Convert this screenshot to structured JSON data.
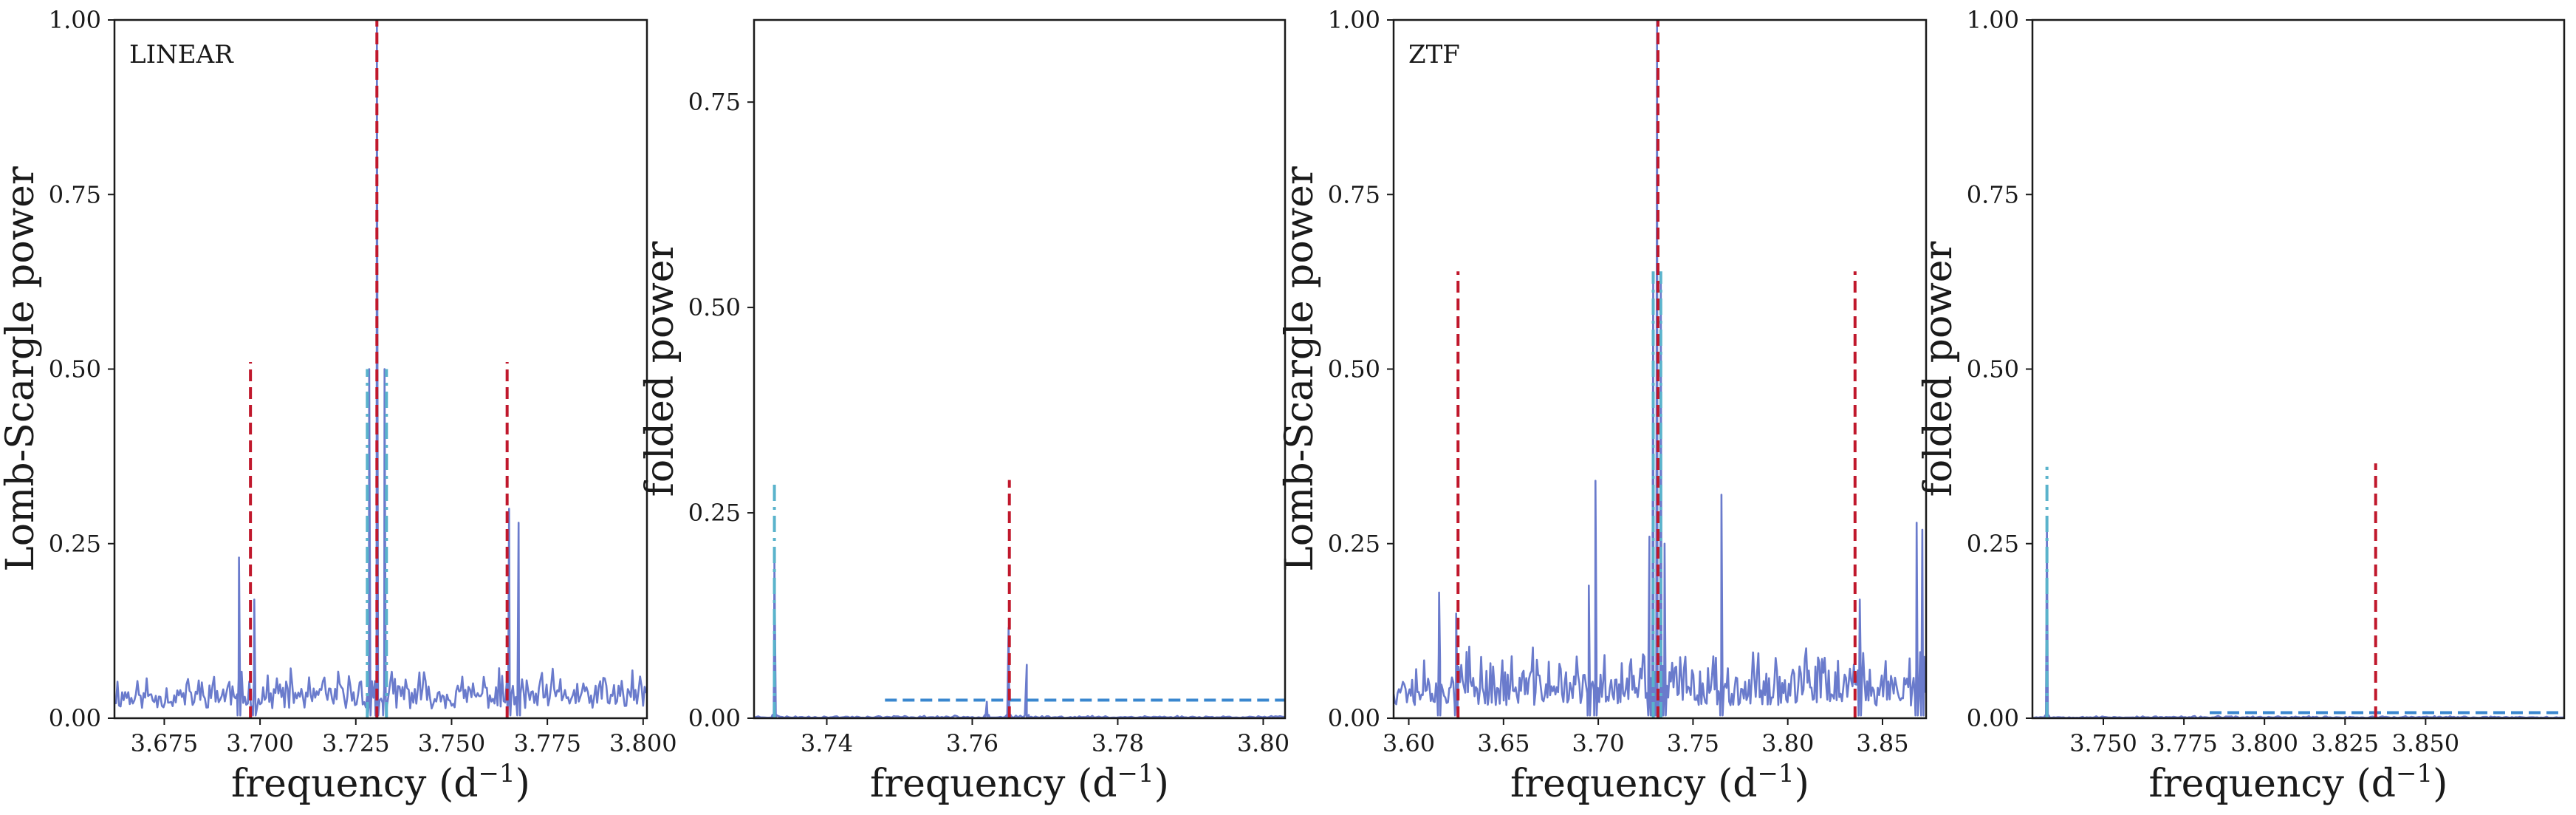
{
  "chart_data": [
    {
      "type": "line",
      "panel_label": "LINEAR",
      "xlabel": "frequency (d",
      "xlabel_sup": "−1",
      "xlabel_tail": ")",
      "ylabel": "Lomb-Scargle power",
      "xlim": [
        3.662,
        3.801
      ],
      "ylim": [
        0.0,
        1.0
      ],
      "xticks": [
        3.675,
        3.7,
        3.725,
        3.75,
        3.775,
        3.8
      ],
      "xtick_labels": [
        "3.675",
        "3.700",
        "3.725",
        "3.750",
        "3.775",
        "3.800"
      ],
      "yticks": [
        0.0,
        0.25,
        0.5,
        0.75,
        1.0
      ],
      "ytick_labels": [
        "0.00",
        "0.25",
        "0.50",
        "0.75",
        "1.00"
      ],
      "noise": {
        "seed": 11,
        "base": 0.035,
        "amp": 0.06,
        "step": 0.0004
      },
      "peaks": [
        {
          "x": 3.6945,
          "y": 0.23
        },
        {
          "x": 3.6985,
          "y": 0.17
        },
        {
          "x": 3.7285,
          "y": 0.5
        },
        {
          "x": 3.7305,
          "y": 1.0
        },
        {
          "x": 3.7325,
          "y": 0.5
        },
        {
          "x": 3.765,
          "y": 0.3
        },
        {
          "x": 3.7675,
          "y": 0.28
        }
      ],
      "red_lines": [
        {
          "x": 3.6975,
          "y0": 0.0,
          "y1": 0.51
        },
        {
          "x": 3.7305,
          "y0": 0.0,
          "y1": 1.0
        },
        {
          "x": 3.7645,
          "y0": 0.0,
          "y1": 0.51
        }
      ],
      "cyan_lines": [
        {
          "x": 3.728,
          "y0": 0.0,
          "y1": 0.5
        },
        {
          "x": 3.733,
          "y0": 0.0,
          "y1": 0.5
        }
      ],
      "blue_hlines": []
    },
    {
      "type": "line",
      "panel_label": "",
      "xlabel": "frequency (d",
      "xlabel_sup": "−1",
      "xlabel_tail": ")",
      "ylabel": "folded power",
      "xlim": [
        3.73,
        3.803
      ],
      "ylim": [
        0.0,
        0.85
      ],
      "xticks": [
        3.74,
        3.76,
        3.78,
        3.8
      ],
      "xtick_labels": [
        "3.74",
        "3.76",
        "3.78",
        "3.80"
      ],
      "yticks": [
        0.0,
        0.25,
        0.5,
        0.75
      ],
      "ytick_labels": [
        "0.00",
        "0.25",
        "0.50",
        "0.75"
      ],
      "noise": {
        "seed": 23,
        "base": 0.001,
        "amp": 0.003,
        "step": 0.0003
      },
      "peaks": [
        {
          "x": 3.7328,
          "y": 0.19
        },
        {
          "x": 3.762,
          "y": 0.02
        },
        {
          "x": 3.765,
          "y": 0.11
        },
        {
          "x": 3.7675,
          "y": 0.065
        }
      ],
      "red_lines": [
        {
          "x": 3.7651,
          "y0": 0.0,
          "y1": 0.29
        }
      ],
      "cyan_lines": [
        {
          "x": 3.7328,
          "y0": 0.0,
          "y1": 0.29
        }
      ],
      "blue_hlines": [
        {
          "y": 0.022,
          "x0": 3.748,
          "x1": 3.803
        }
      ]
    },
    {
      "type": "line",
      "panel_label": "ZTF",
      "xlabel": "frequency (d",
      "xlabel_sup": "−1",
      "xlabel_tail": ")",
      "ylabel": "Lomb-Scargle power",
      "xlim": [
        3.592,
        3.873
      ],
      "ylim": [
        0.0,
        1.0
      ],
      "xticks": [
        3.6,
        3.65,
        3.7,
        3.75,
        3.8,
        3.85
      ],
      "xtick_labels": [
        "3.60",
        "3.65",
        "3.70",
        "3.75",
        "3.80",
        "3.85"
      ],
      "yticks": [
        0.0,
        0.25,
        0.5,
        0.75,
        1.0
      ],
      "ytick_labels": [
        "0.00",
        "0.25",
        "0.50",
        "0.75",
        "1.00"
      ],
      "noise": {
        "seed": 37,
        "base": 0.045,
        "amp": 0.09,
        "step": 0.0007
      },
      "peaks": [
        {
          "x": 3.616,
          "y": 0.18
        },
        {
          "x": 3.625,
          "y": 0.15
        },
        {
          "x": 3.695,
          "y": 0.19
        },
        {
          "x": 3.6985,
          "y": 0.34
        },
        {
          "x": 3.727,
          "y": 0.26
        },
        {
          "x": 3.729,
          "y": 0.63
        },
        {
          "x": 3.731,
          "y": 1.0
        },
        {
          "x": 3.733,
          "y": 0.63
        },
        {
          "x": 3.735,
          "y": 0.25
        },
        {
          "x": 3.765,
          "y": 0.32
        },
        {
          "x": 3.838,
          "y": 0.17
        },
        {
          "x": 3.868,
          "y": 0.28
        },
        {
          "x": 3.871,
          "y": 0.27
        }
      ],
      "red_lines": [
        {
          "x": 3.626,
          "y0": 0.0,
          "y1": 0.64
        },
        {
          "x": 3.7315,
          "y0": 0.0,
          "y1": 1.0
        },
        {
          "x": 3.8355,
          "y0": 0.0,
          "y1": 0.64
        }
      ],
      "cyan_lines": [
        {
          "x": 3.729,
          "y0": 0.0,
          "y1": 0.64
        },
        {
          "x": 3.733,
          "y0": 0.0,
          "y1": 0.64
        }
      ],
      "blue_hlines": []
    },
    {
      "type": "line",
      "panel_label": "",
      "xlabel": "frequency (d",
      "xlabel_sup": "−1",
      "xlabel_tail": ")",
      "ylabel": "folded power",
      "xlim": [
        3.728,
        3.893
      ],
      "ylim": [
        0.0,
        1.0
      ],
      "xticks": [
        3.75,
        3.775,
        3.8,
        3.825,
        3.85
      ],
      "xtick_labels": [
        "3.750",
        "3.775",
        "3.800",
        "3.825",
        "3.850"
      ],
      "yticks": [
        0.0,
        0.25,
        0.5,
        0.75,
        1.0
      ],
      "ytick_labels": [
        "0.00",
        "0.25",
        "0.50",
        "0.75",
        "1.00"
      ],
      "noise": {
        "seed": 53,
        "base": 0.001,
        "amp": 0.003,
        "step": 0.0006
      },
      "peaks": [
        {
          "x": 3.7325,
          "y": 0.28
        }
      ],
      "red_lines": [
        {
          "x": 3.8345,
          "y0": 0.0,
          "y1": 0.365
        }
      ],
      "cyan_lines": [
        {
          "x": 3.7325,
          "y0": 0.0,
          "y1": 0.36
        }
      ],
      "blue_hlines": [
        {
          "y": 0.008,
          "x0": 3.783,
          "x1": 3.893
        }
      ]
    }
  ]
}
